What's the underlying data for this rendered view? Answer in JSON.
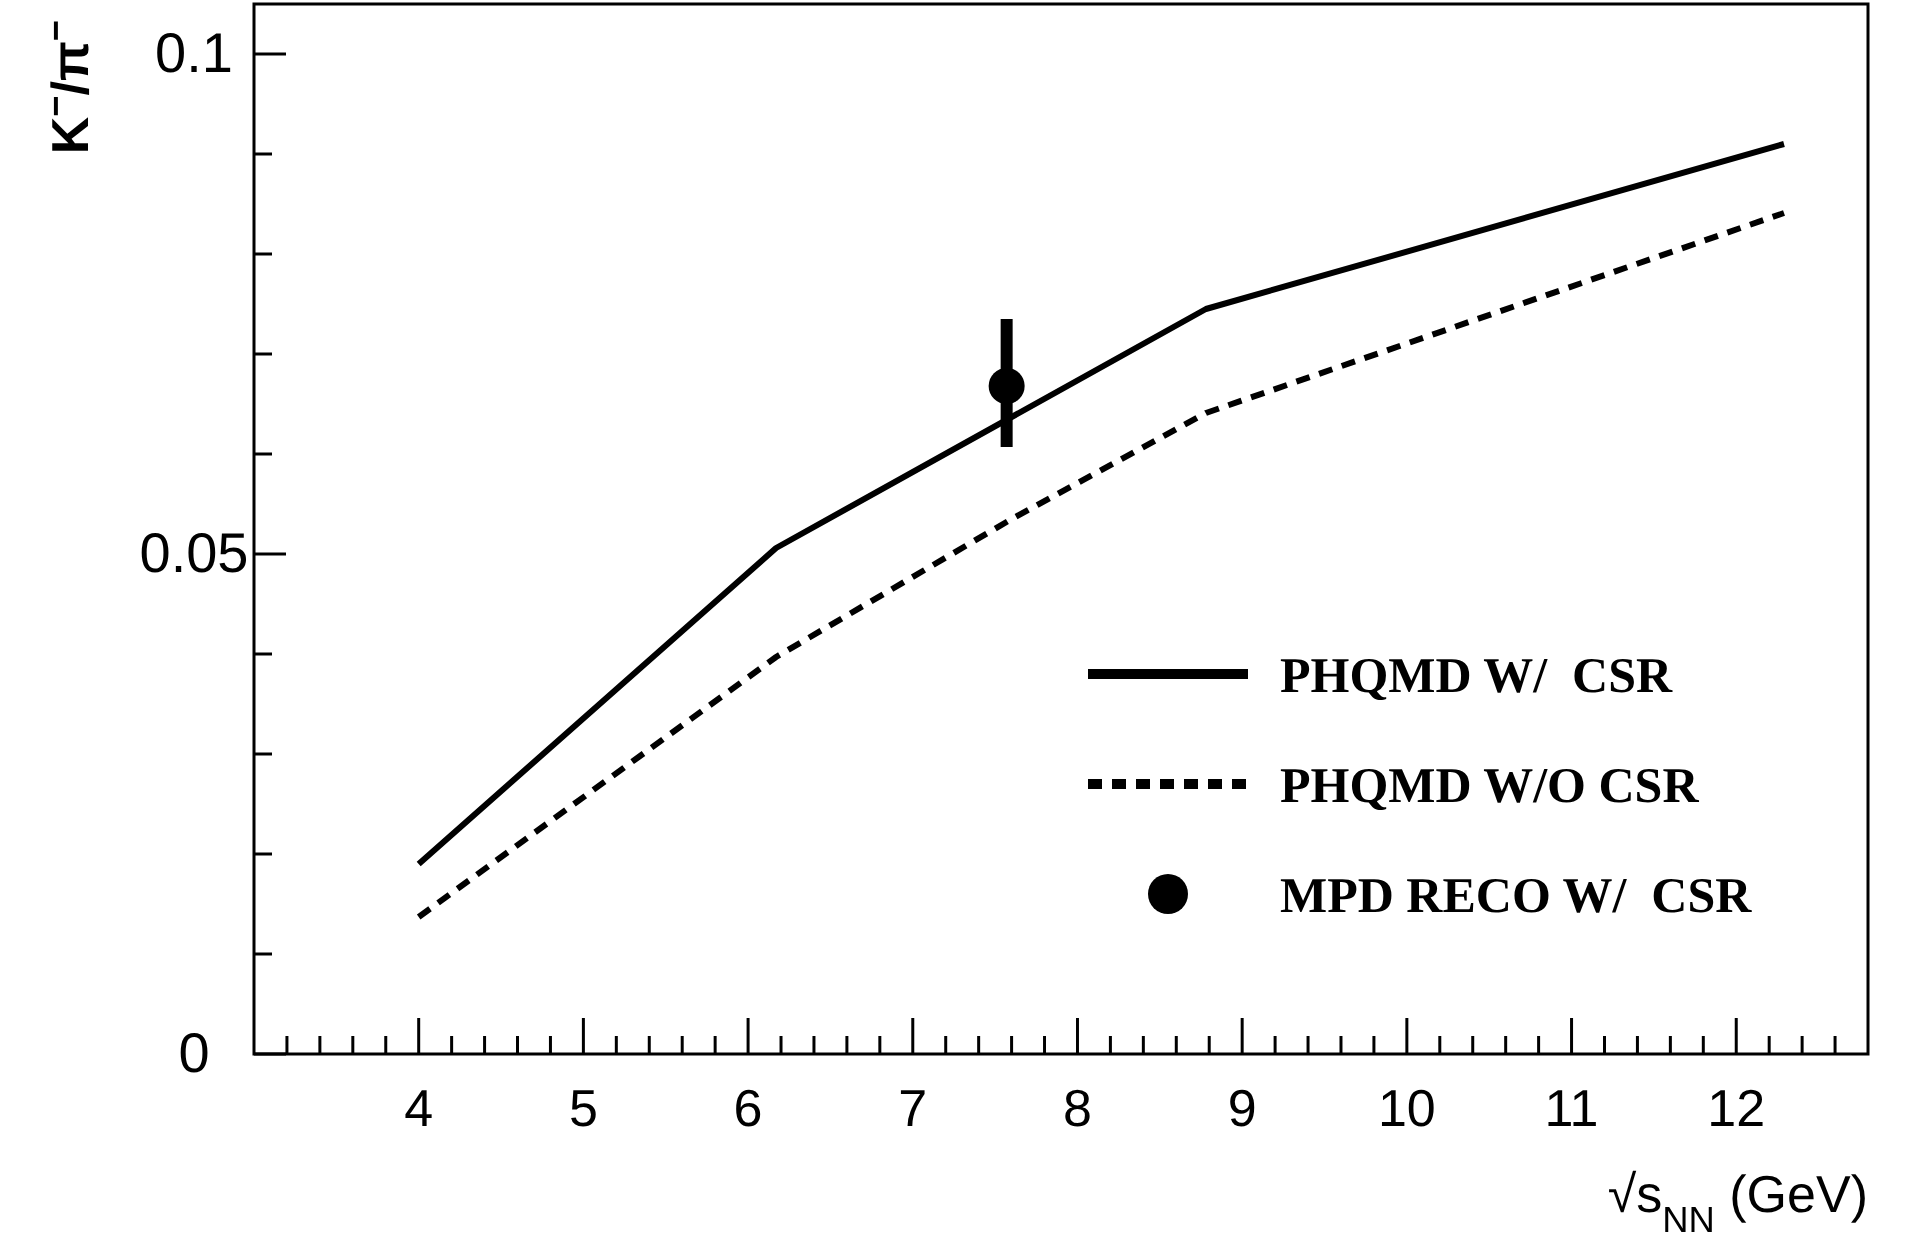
{
  "chart_data": {
    "type": "line",
    "xlabel": "√s$_{NN}$ (GeV)",
    "ylabel": "K$^{−}$/π$^{−}$",
    "xlim": [
      3,
      12.8
    ],
    "ylim": [
      0,
      0.105
    ],
    "xticks": [
      {
        "value": 3.2,
        "label": null
      },
      {
        "value": 3.4,
        "label": null
      },
      {
        "value": 3.6,
        "label": null
      },
      {
        "value": 3.8,
        "label": null
      },
      4,
      {
        "value": 4.2,
        "label": null
      },
      {
        "value": 4.4,
        "label": null
      },
      {
        "value": 4.6,
        "label": null
      },
      {
        "value": 4.8,
        "label": null
      },
      5,
      {
        "value": 5.2,
        "label": null
      },
      {
        "value": 5.4,
        "label": null
      },
      {
        "value": 5.6,
        "label": null
      },
      {
        "value": 5.8,
        "label": null
      },
      6,
      {
        "value": 6.2,
        "label": null
      },
      {
        "value": 6.4,
        "label": null
      },
      {
        "value": 6.6,
        "label": null
      },
      {
        "value": 6.8,
        "label": null
      },
      7,
      {
        "value": 7.2,
        "label": null
      },
      {
        "value": 7.4,
        "label": null
      },
      {
        "value": 7.6,
        "label": null
      },
      {
        "value": 7.8,
        "label": null
      },
      8,
      {
        "value": 8.2,
        "label": null
      },
      {
        "value": 8.4,
        "label": null
      },
      {
        "value": 8.6,
        "label": null
      },
      {
        "value": 8.8,
        "label": null
      },
      9,
      {
        "value": 9.2,
        "label": null
      },
      {
        "value": 9.4,
        "label": null
      },
      {
        "value": 9.6,
        "label": null
      },
      {
        "value": 9.8,
        "label": null
      },
      10,
      {
        "value": 10.2,
        "label": null
      },
      {
        "value": 10.4,
        "label": null
      },
      {
        "value": 10.6,
        "label": null
      },
      {
        "value": 10.8,
        "label": null
      },
      11,
      {
        "value": 11.2,
        "label": null
      },
      {
        "value": 11.4,
        "label": null
      },
      {
        "value": 11.6,
        "label": null
      },
      {
        "value": 11.8,
        "label": null
      },
      12,
      {
        "value": 12.2,
        "label": null
      },
      {
        "value": 12.4,
        "label": null
      },
      {
        "value": 12.6,
        "label": null
      }
    ],
    "yticks": [
      0,
      {
        "value": 0.01,
        "label": null
      },
      {
        "value": 0.02,
        "label": null
      },
      {
        "value": 0.03,
        "label": null
      },
      {
        "value": 0.04,
        "label": null
      },
      0.05,
      {
        "value": 0.06,
        "label": null
      },
      {
        "value": 0.07,
        "label": null
      },
      {
        "value": 0.08,
        "label": null
      },
      {
        "value": 0.09,
        "label": null
      },
      0.1
    ],
    "legend": "bottom right",
    "series": [
      {
        "name": "PHQMD W/  CSR",
        "line_style": "solid",
        "marker": "none",
        "color": "#000000",
        "x": [
          4,
          6.17,
          8.78,
          12.29
        ],
        "values": [
          0.019,
          0.0506,
          0.0745,
          0.091
        ]
      },
      {
        "name": "PHQMD W/O CSR",
        "line_style": "dashed",
        "marker": "none",
        "color": "#000000",
        "x": [
          4,
          6.17,
          7.6,
          8.78,
          12.29
        ],
        "values": [
          0.0137,
          0.0397,
          0.0535,
          0.0641,
          0.0841
        ]
      },
      {
        "name": "MPD RECO W/  CSR",
        "type": "scatter",
        "marker": "circle",
        "color": "#000000",
        "x": [
          7.57
        ],
        "values": [
          0.0668
        ],
        "errors": [
          [
            0.0607,
            0.0735
          ]
        ]
      }
    ]
  }
}
